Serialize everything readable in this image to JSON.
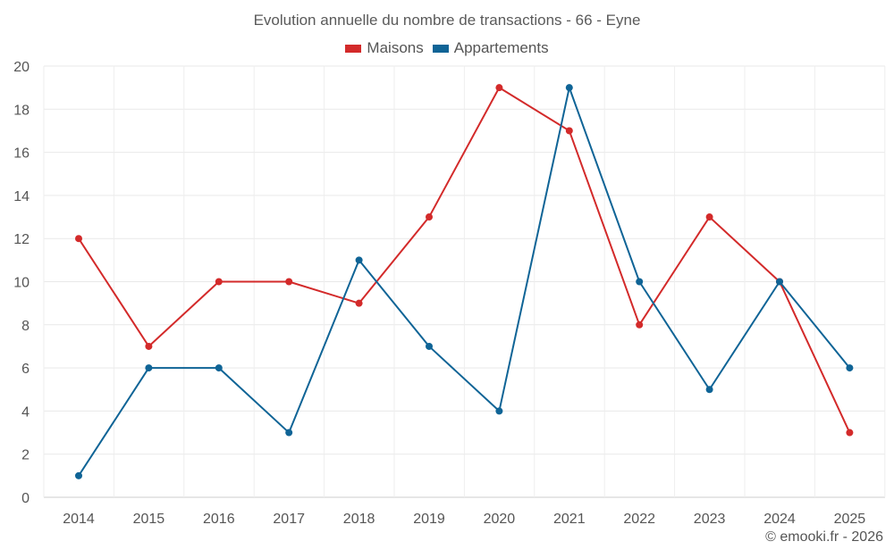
{
  "chart_data": {
    "type": "line",
    "title": "Evolution annuelle du nombre de transactions - 66 - Eyne",
    "categories": [
      "2014",
      "2015",
      "2016",
      "2017",
      "2018",
      "2019",
      "2020",
      "2021",
      "2022",
      "2023",
      "2024",
      "2025"
    ],
    "series": [
      {
        "name": "Maisons",
        "color": "#d32a2a",
        "values": [
          12,
          7,
          10,
          10,
          9,
          13,
          19,
          17,
          8,
          13,
          10,
          3
        ]
      },
      {
        "name": "Appartements",
        "color": "#0f6496",
        "values": [
          1,
          6,
          6,
          3,
          11,
          7,
          4,
          19,
          10,
          5,
          10,
          6
        ]
      }
    ],
    "ylim": [
      0,
      20
    ],
    "yticks": [
      "0",
      "2",
      "4",
      "6",
      "8",
      "10",
      "12",
      "14",
      "16",
      "18",
      "20"
    ],
    "xlabel": "",
    "ylabel": "",
    "grid": true,
    "legend_position": "top-center"
  },
  "credit": "© emooki.fr - 2026"
}
